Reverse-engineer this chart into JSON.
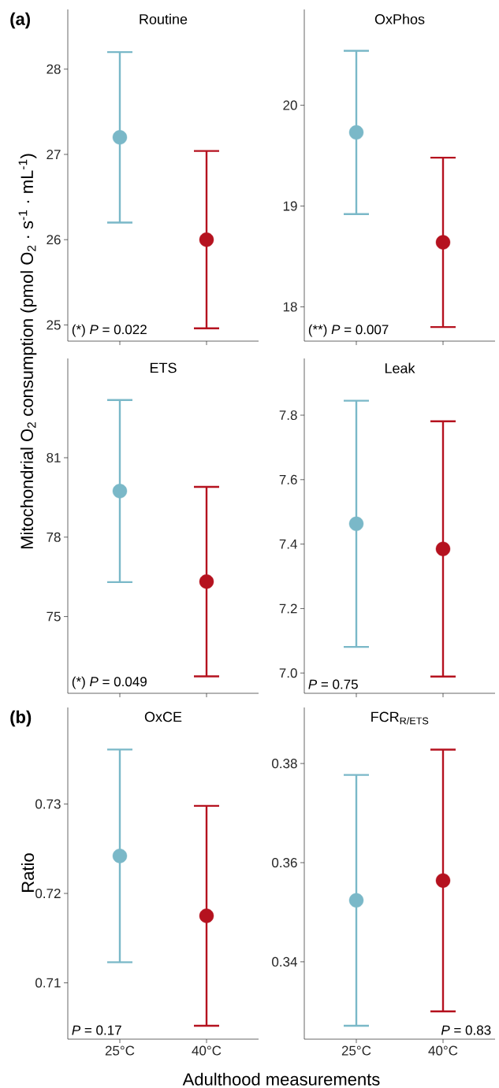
{
  "chart_data": [
    {
      "type": "scatter",
      "title": "Routine",
      "ylabel": "Mitochondrial O$_{2}$ consumption (pmol O$_{2}$ · s$^{-1}$ · mL$^{-1}$)",
      "categories": [
        null,
        null
      ],
      "values": [
        27.2,
        26.0
      ],
      "errors": [
        1.0,
        1.04
      ],
      "colors": [
        "#7ab8c8",
        "#b5121f"
      ],
      "ylim": [
        24.81,
        28.7
      ],
      "yticks": [
        25,
        26,
        27,
        28
      ],
      "tick_labels": "y",
      "annotations": [
        "**(a)**",
        "(*) *P* = 0.022"
      ]
    },
    {
      "type": "scatter",
      "title": "OxPhos",
      "categories": [
        null,
        null
      ],
      "values": [
        19.73,
        18.64
      ],
      "errors": [
        0.81,
        0.84
      ],
      "colors": [
        "#7ab8c8",
        "#b5121f"
      ],
      "ylim": [
        17.66,
        20.95
      ],
      "yticks": [
        18,
        19,
        20
      ],
      "tick_labels": "y",
      "annotations": [
        "(**) *P* = 0.007"
      ]
    },
    {
      "type": "scatter",
      "title": "ETS",
      "categories": [
        null,
        null
      ],
      "values": [
        79.74,
        76.32
      ],
      "errors": [
        3.44,
        3.58
      ],
      "colors": [
        "#7ab8c8",
        "#b5121f"
      ],
      "ylim": [
        72.1,
        84.75
      ],
      "yticks": [
        75,
        78,
        81
      ],
      "tick_labels": "y",
      "annotations": [
        "(*) *P* = 0.049"
      ]
    },
    {
      "type": "scatter",
      "title": "Leak",
      "categories": [
        null,
        null
      ],
      "values": [
        7.463,
        7.385
      ],
      "errors": [
        0.382,
        0.396
      ],
      "colors": [
        "#7ab8c8",
        "#b5121f"
      ],
      "ylim": [
        6.937,
        7.976
      ],
      "yticks": [
        {
          "value": 7.0,
          "label": "7.0"
        },
        7.2,
        7.4,
        7.6,
        7.8
      ],
      "tick_labels": "y",
      "annotations": [
        "*P* = 0.75"
      ]
    },
    {
      "type": "scatter",
      "title": "OxCE",
      "ylabel": "Ratio",
      "xlabel": "Adulthood measurements",
      "categories": [
        "25°C",
        "40°C"
      ],
      "values": [
        0.7242,
        0.7175
      ],
      "errors": [
        0.0119,
        0.0123
      ],
      "colors": [
        "#7ab8c8",
        "#b5121f"
      ],
      "ylim": [
        0.7037,
        0.7408
      ],
      "yticks": [
        0.71,
        0.72,
        0.73
      ],
      "annotations": [
        "**(b)**",
        "*P* = 0.17"
      ]
    },
    {
      "type": "scatter",
      "title": "FCR$_{R/ETS}$",
      "categories": [
        "25°C",
        "40°C"
      ],
      "values": [
        0.3524,
        0.3564
      ],
      "errors": [
        0.0253,
        0.0264
      ],
      "colors": [
        "#7ab8c8",
        "#b5121f"
      ],
      "ylim": [
        0.3244,
        0.3913
      ],
      "yticks": [
        0.34,
        0.36,
        0.38
      ],
      "annotations": [
        "*P* = 0.83"
      ]
    }
  ]
}
